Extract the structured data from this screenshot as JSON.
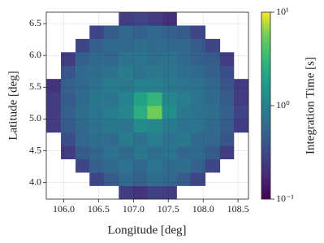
{
  "chart_data": {
    "type": "heatmap",
    "xlabel": "Longitude [deg]",
    "ylabel": "Latitude [deg]",
    "colorbar_label": "Integration Time [s]",
    "xlim": [
      105.75,
      108.65
    ],
    "ylim": [
      3.74,
      6.68
    ],
    "xticks": [
      {
        "value": 106,
        "label": "106.0"
      },
      {
        "value": 106.5,
        "label": "106.5"
      },
      {
        "value": 107,
        "label": "107.0"
      },
      {
        "value": 107.5,
        "label": "107.5"
      },
      {
        "value": 108,
        "label": "108.0"
      },
      {
        "value": 108.5,
        "label": "108.5"
      }
    ],
    "yticks": [
      {
        "value": 4,
        "label": "4.0"
      },
      {
        "value": 4.5,
        "label": "4.5"
      },
      {
        "value": 5,
        "label": "5.0"
      },
      {
        "value": 5.5,
        "label": "5.5"
      },
      {
        "value": 6,
        "label": "6.0"
      },
      {
        "value": 6.5,
        "label": "6.5"
      }
    ],
    "grid": true,
    "colormap": "viridis",
    "color_scale": "log",
    "clim": [
      0.1,
      10
    ],
    "cticks": [
      {
        "value": 0.1,
        "label": "10⁻¹"
      },
      {
        "value": 1,
        "label": "10⁰"
      },
      {
        "value": 10,
        "label": "10¹"
      }
    ],
    "xbins": [
      105.75,
      105.96,
      106.17,
      106.37,
      106.58,
      106.79,
      107.0,
      107.2,
      107.41,
      107.62,
      107.82,
      108.03,
      108.24,
      108.44,
      108.65
    ],
    "ybins": [
      3.74,
      3.95,
      4.16,
      4.37,
      4.58,
      4.79,
      5.0,
      5.21,
      5.42,
      5.63,
      5.84,
      6.05,
      6.26,
      6.47,
      6.68
    ],
    "z": [
      [
        null,
        null,
        null,
        null,
        null,
        0.25,
        0.22,
        0.28,
        0.25,
        null,
        null,
        null,
        null,
        null
      ],
      [
        null,
        null,
        null,
        0.3,
        0.45,
        0.6,
        0.5,
        0.65,
        0.55,
        0.45,
        0.3,
        null,
        null,
        null
      ],
      [
        null,
        null,
        0.3,
        0.5,
        0.6,
        0.7,
        0.55,
        0.75,
        0.6,
        0.65,
        0.5,
        0.3,
        null,
        null
      ],
      [
        null,
        0.25,
        0.45,
        0.55,
        0.7,
        0.6,
        0.8,
        0.65,
        0.75,
        0.55,
        0.6,
        0.45,
        0.25,
        null
      ],
      [
        null,
        0.35,
        0.55,
        0.65,
        0.6,
        0.85,
        0.7,
        0.9,
        0.7,
        0.8,
        0.6,
        0.55,
        0.4,
        null
      ],
      [
        0.25,
        0.45,
        0.6,
        0.7,
        0.8,
        0.75,
        1.2,
        1.1,
        0.85,
        0.7,
        0.75,
        0.6,
        0.45,
        0.25
      ],
      [
        0.25,
        0.5,
        0.65,
        0.75,
        0.9,
        1.1,
        2.5,
        5.5,
        1.3,
        0.8,
        0.7,
        0.65,
        0.5,
        0.3
      ],
      [
        0.25,
        0.45,
        0.6,
        0.8,
        0.75,
        1.0,
        2.0,
        3.0,
        1.1,
        0.9,
        0.75,
        0.6,
        0.45,
        0.25
      ],
      [
        0.22,
        0.5,
        0.55,
        0.7,
        0.85,
        0.8,
        1.0,
        0.95,
        0.8,
        0.75,
        0.7,
        0.55,
        0.4,
        0.25
      ],
      [
        null,
        0.4,
        0.6,
        0.65,
        0.7,
        0.85,
        0.7,
        0.8,
        0.75,
        0.65,
        0.6,
        0.5,
        0.35,
        null
      ],
      [
        null,
        0.25,
        0.5,
        0.6,
        0.55,
        0.7,
        0.75,
        0.65,
        0.7,
        0.6,
        0.5,
        0.45,
        0.25,
        null
      ],
      [
        null,
        null,
        0.3,
        0.5,
        0.6,
        0.55,
        0.65,
        0.6,
        0.6,
        0.55,
        0.45,
        0.3,
        null,
        null
      ],
      [
        null,
        null,
        null,
        0.3,
        0.45,
        0.55,
        0.5,
        0.55,
        0.5,
        0.45,
        0.3,
        null,
        null,
        null
      ],
      [
        null,
        null,
        null,
        null,
        null,
        0.25,
        0.3,
        0.25,
        0.2,
        null,
        null,
        null,
        null,
        null
      ]
    ]
  }
}
